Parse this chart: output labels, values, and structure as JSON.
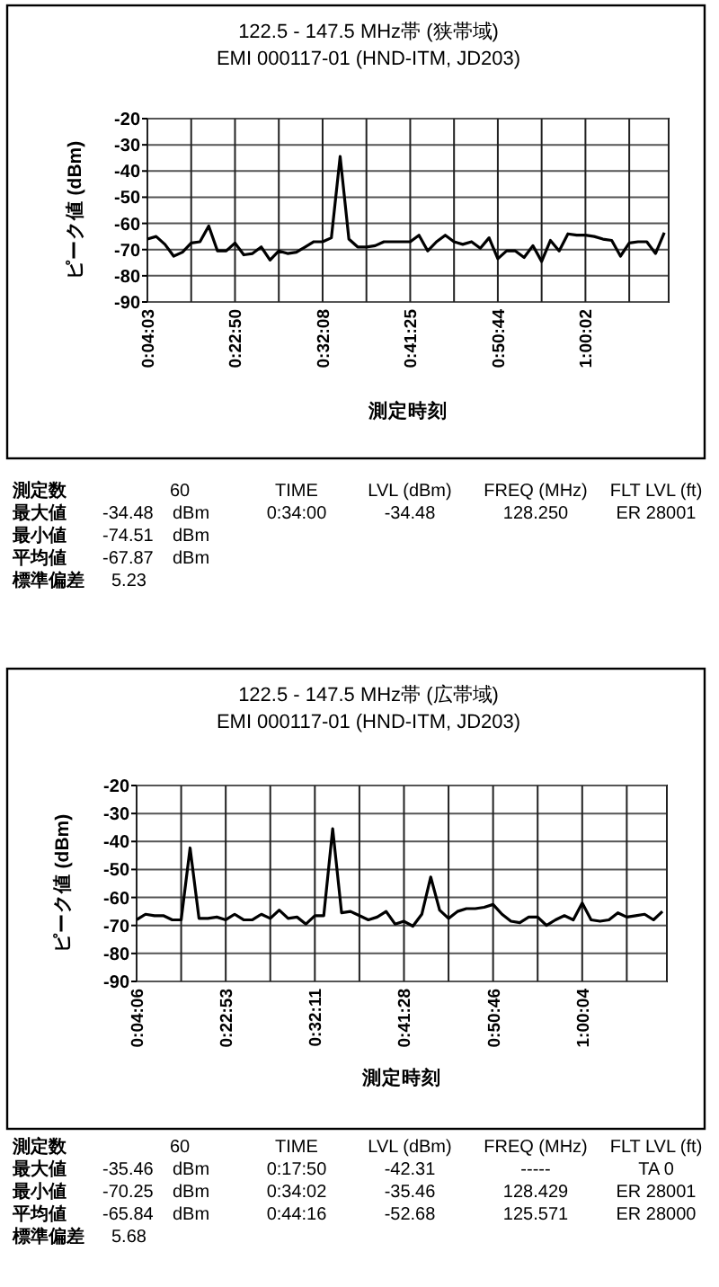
{
  "chart_data": [
    {
      "type": "line",
      "title": "122.5 - 147.5 MHz帯 (狭帯域)",
      "subtitle": "EMI 000117-01 (HND-ITM, JD203)",
      "ylabel": "ピーク値 (dBm)",
      "xlabel": "測定時刻",
      "categories": [
        "0:04:03",
        null,
        null,
        null,
        null,
        null,
        null,
        null,
        null,
        null,
        "0:22:50",
        null,
        null,
        null,
        null,
        null,
        null,
        null,
        null,
        null,
        "0:32:08",
        null,
        null,
        null,
        null,
        null,
        null,
        null,
        null,
        null,
        "0:41:25",
        null,
        null,
        null,
        null,
        null,
        null,
        null,
        null,
        null,
        "0:50:44",
        null,
        null,
        null,
        null,
        null,
        null,
        null,
        null,
        null,
        "1:00:02",
        null,
        null,
        null,
        null,
        null,
        null,
        null,
        null,
        null
      ],
      "values": [
        -66,
        -65,
        -68,
        -72.5,
        -71,
        -67.5,
        -67,
        -61,
        -70.5,
        -70.5,
        -67.5,
        -72,
        -71.5,
        -69,
        -74,
        -70.5,
        -71.5,
        -71,
        -69,
        -67,
        -67,
        -65.5,
        -34.48,
        -66,
        -69,
        -69,
        -68.5,
        -67,
        -67,
        -67,
        -67,
        -64.5,
        -70.5,
        -67,
        -64.5,
        -67,
        -68,
        -67,
        -69.5,
        -65.5,
        -73.5,
        -70.5,
        -70.5,
        -73,
        -68.5,
        -74.51,
        -66.5,
        -70.5,
        -64,
        -64.5,
        -64.5,
        -65,
        -66,
        -66.5,
        -72.5,
        -67.5,
        -67,
        -67,
        -71.5,
        -63.5
      ],
      "color": "#000000",
      "ylim": [
        -90,
        -20
      ],
      "yticks": [
        -90,
        -80,
        -70,
        -60,
        -50,
        -40,
        -30,
        -20
      ],
      "grid": true,
      "annotations": [
        "測定数",
        "60",
        "最大値",
        "-34.48",
        "dBm",
        "最小値",
        "-74.51",
        "dBm",
        "平均値",
        "-67.87",
        "dBm",
        "標準偏差",
        "5.23",
        "TIME",
        "LVL (dBm)",
        "FREQ (MHz)",
        "FLT LVL (ft)",
        "0:34:00",
        "-34.48",
        "128.250",
        "ER 28001"
      ]
    },
    {
      "type": "line",
      "title": "122.5 - 147.5 MHz帯 (広帯域)",
      "subtitle": "EMI 000117-01 (HND-ITM, JD203)",
      "ylabel": "ピーク値 (dBm)",
      "xlabel": "測定時刻",
      "categories": [
        "0:04:06",
        null,
        null,
        null,
        null,
        null,
        null,
        null,
        null,
        null,
        "0:22:53",
        null,
        null,
        null,
        null,
        null,
        null,
        null,
        null,
        null,
        "0:32:11",
        null,
        null,
        null,
        null,
        null,
        null,
        null,
        null,
        null,
        "0:41:28",
        null,
        null,
        null,
        null,
        null,
        null,
        null,
        null,
        null,
        "0:50:46",
        null,
        null,
        null,
        null,
        null,
        null,
        null,
        null,
        null,
        "1:00:04",
        null,
        null,
        null,
        null,
        null,
        null,
        null,
        null,
        null
      ],
      "values": [
        -68,
        -66,
        -66.5,
        -66.5,
        -68,
        -68,
        -42.31,
        -67.5,
        -67.5,
        -67,
        -68,
        -66,
        -68,
        -68,
        -66,
        -67.5,
        -64.5,
        -67.5,
        -67,
        -69.5,
        -66.5,
        -66.5,
        -35.46,
        -65.5,
        -65,
        -66.5,
        -68,
        -67,
        -65,
        -69.5,
        -68.5,
        -70.25,
        -66,
        -52.68,
        -64.5,
        -67.5,
        -65,
        -64,
        -64,
        -63.5,
        -62.5,
        -66,
        -68.5,
        -69,
        -67,
        -67,
        -70,
        -68,
        -66.5,
        -68,
        -62,
        -68,
        -68.5,
        -68,
        -65.5,
        -67,
        -66.5,
        -66,
        -68,
        -65
      ],
      "color": "#000000",
      "ylim": [
        -90,
        -20
      ],
      "yticks": [
        -90,
        -80,
        -70,
        -60,
        -50,
        -40,
        -30,
        -20
      ],
      "grid": true,
      "annotations": [
        "測定数",
        "60",
        "最大値",
        "-35.46",
        "dBm",
        "最小値",
        "-70.25",
        "dBm",
        "平均値",
        "-65.84",
        "dBm",
        "標準偏差",
        "5.68",
        "TIME",
        "LVL (dBm)",
        "FREQ (MHz)",
        "FLT LVL (ft)",
        "0:17:50",
        "-42.31",
        "-----",
        "TA  0",
        "0:34:02",
        "-35.46",
        "128.429",
        "ER 28001",
        "0:44:16",
        "-52.68",
        "125.571",
        "ER 28000"
      ]
    }
  ]
}
